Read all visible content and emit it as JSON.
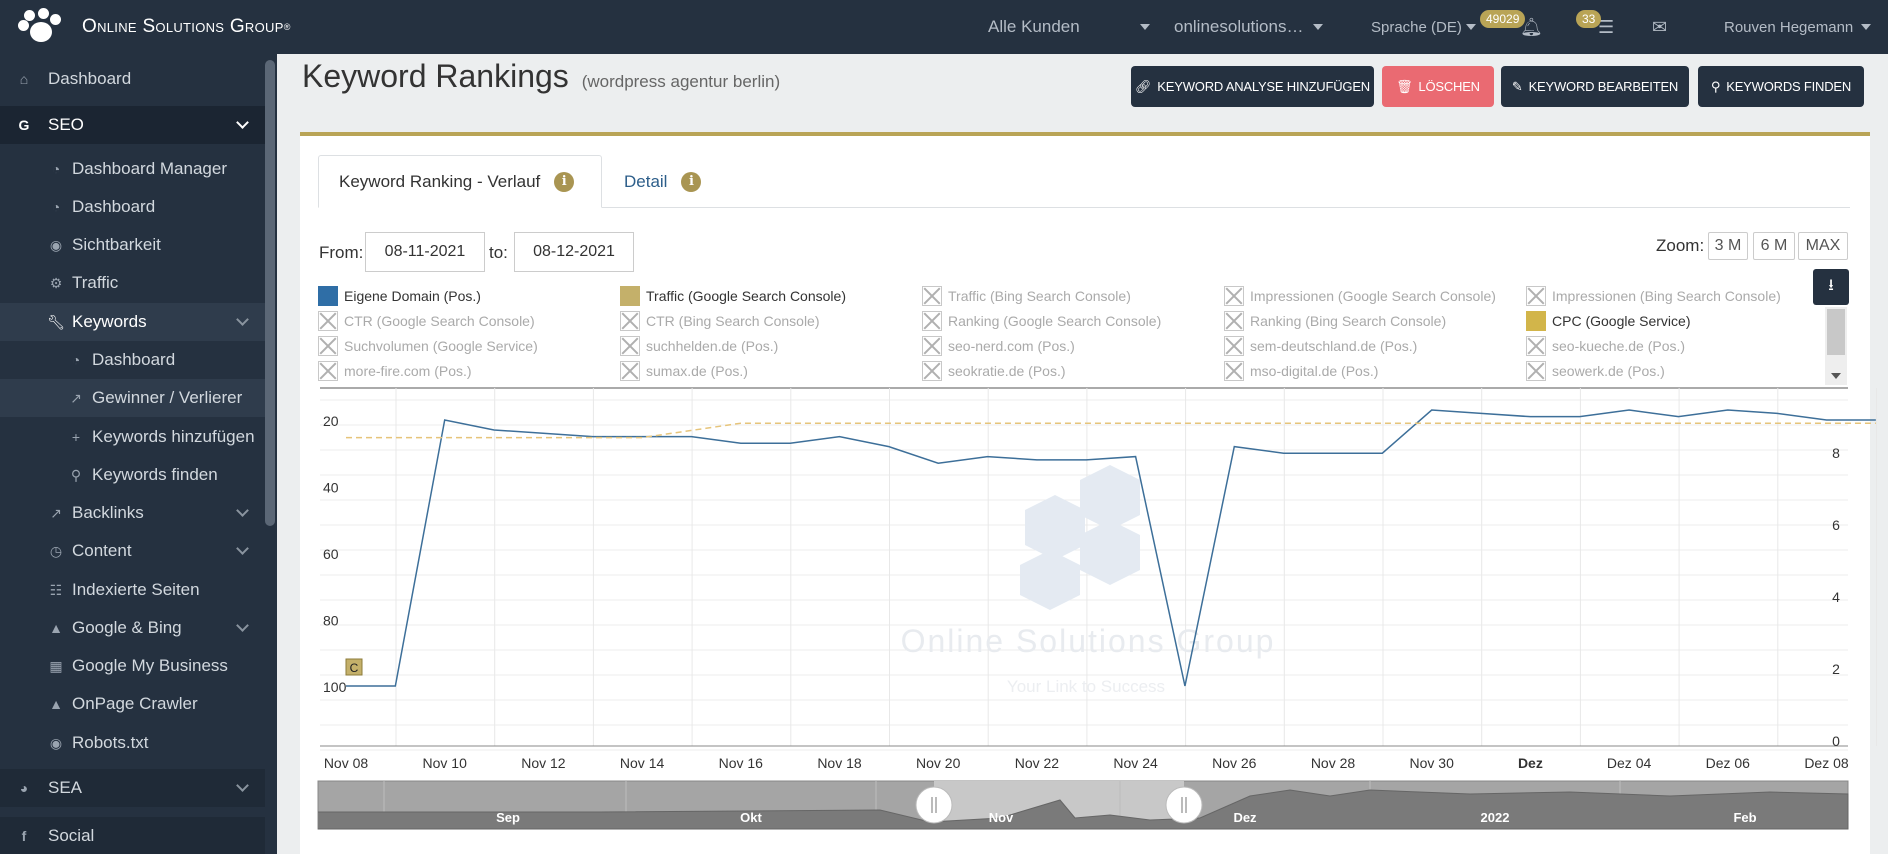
{
  "topbar": {
    "brand": "Online Solutions Group",
    "customers": "Alle Kunden",
    "domain": "onlinesolutions…",
    "language": "Sprache (DE)",
    "notifications_count": "49029",
    "tasks_count": "33",
    "user": "Rouven Hegemann"
  },
  "sidebar": {
    "dashboard": "Dashboard",
    "seo": "SEO",
    "dashboard_manager": "Dashboard Manager",
    "seo_dashboard": "Dashboard",
    "sichtbarkeit": "Sichtbarkeit",
    "traffic": "Traffic",
    "keywords": "Keywords",
    "kw_dashboard": "Dashboard",
    "gewinner": "Gewinner / Verlierer",
    "kw_add": "Keywords hinzufügen",
    "kw_find": "Keywords finden",
    "backlinks": "Backlinks",
    "content": "Content",
    "indexierte": "Indexierte Seiten",
    "google_bing": "Google & Bing",
    "gmb": "Google My Business",
    "crawler": "OnPage Crawler",
    "robots": "Robots.txt",
    "sea": "SEA",
    "social": "Social"
  },
  "page": {
    "title": "Keyword Rankings",
    "subtitle": "(wordpress agentur berlin)",
    "btn_add": "KEYWORD ANALYSE HINZUFÜGEN",
    "btn_delete": "LÖSCHEN",
    "btn_edit": "KEYWORD BEARBEITEN",
    "btn_find": "KEYWORDS FINDEN"
  },
  "colors": {
    "accent": "#b9a456",
    "navy": "#253140",
    "danger": "#ea6a72",
    "series_blue": "#2f6ea6",
    "cpc_gold": "#d2b54a"
  },
  "tabs": {
    "history": "Keyword Ranking - Verlauf",
    "detail": "Detail"
  },
  "filters": {
    "from_label": "From:",
    "from": "08-11-2021",
    "to_label": "to:",
    "to": "08-12-2021",
    "zoom_label": "Zoom:",
    "zoom_3m": "3 M",
    "zoom_6m": "6 M",
    "zoom_max": "MAX"
  },
  "legend": [
    {
      "label": "Eigene Domain (Pos.)",
      "active": true,
      "color": "#2f6ea6"
    },
    {
      "label": "Traffic (Google Search Console)",
      "active": true,
      "color": "#c4b06a"
    },
    {
      "label": "Traffic (Bing Search Console)",
      "active": false
    },
    {
      "label": "Impressionen (Google Search Console)",
      "active": false
    },
    {
      "label": "Impressionen (Bing Search Console)",
      "active": false
    },
    {
      "label": "CTR (Google Search Console)",
      "active": false
    },
    {
      "label": "CTR (Bing Search Console)",
      "active": false
    },
    {
      "label": "Ranking (Google Search Console)",
      "active": false
    },
    {
      "label": "Ranking (Bing Search Console)",
      "active": false
    },
    {
      "label": "CPC (Google Service)",
      "active": true,
      "color": "#d2b54a"
    },
    {
      "label": "Suchvolumen (Google Service)",
      "active": false
    },
    {
      "label": "suchhelden.de (Pos.)",
      "active": false
    },
    {
      "label": "seo-nerd.com (Pos.)",
      "active": false
    },
    {
      "label": "sem-deutschland.de (Pos.)",
      "active": false
    },
    {
      "label": "seo-kueche.de (Pos.)",
      "active": false
    },
    {
      "label": "more-fire.com (Pos.)",
      "active": false
    },
    {
      "label": "sumax.de (Pos.)",
      "active": false
    },
    {
      "label": "seokratie.de (Pos.)",
      "active": false
    },
    {
      "label": "mso-digital.de (Pos.)",
      "active": false
    },
    {
      "label": "seowerk.de (Pos.)",
      "active": false
    }
  ],
  "chart_data": {
    "type": "line",
    "x_ticks": [
      "Nov 08",
      "Nov 10",
      "Nov 12",
      "Nov 14",
      "Nov 16",
      "Nov 18",
      "Nov 20",
      "Nov 22",
      "Nov 24",
      "Nov 26",
      "Nov 28",
      "Nov 30",
      "Dez",
      "Dez 04",
      "Dez 06",
      "Dez 08"
    ],
    "y_left_ticks": [
      "20",
      "40",
      "60",
      "80",
      "100"
    ],
    "y_left_range": [
      0,
      100
    ],
    "y_left_reversed": true,
    "y_right_ticks": [
      "8",
      "6",
      "4",
      "2",
      "0"
    ],
    "y_right_range": [
      0,
      10
    ],
    "series": [
      {
        "name": "Eigene Domain (Pos.)",
        "axis": "left",
        "x": [
          0,
          0.5,
          1,
          1.5,
          2.5,
          3.5,
          4,
          4.5,
          5,
          5.5,
          6,
          6.5,
          7,
          7.5,
          8,
          8.5,
          9,
          9.5,
          10,
          10.5,
          11,
          11.5,
          12,
          12.5,
          13,
          13.5,
          14,
          14.5,
          15,
          15.5
        ],
        "values": [
          100,
          100,
          20,
          23,
          25,
          25,
          27,
          27,
          25,
          28,
          33,
          31,
          32,
          32,
          31,
          100,
          28,
          30,
          30,
          30,
          17,
          18,
          19,
          19,
          17,
          19,
          17,
          18,
          20,
          20
        ]
      },
      {
        "name": "Traffic (Google Search Console)",
        "axis": "right",
        "dashed": true,
        "x": [
          0,
          3,
          4,
          7,
          14,
          15.5
        ],
        "values": [
          8.4,
          8.4,
          8.8,
          8.8,
          8.8,
          8.8
        ]
      }
    ],
    "annotation": "C",
    "watermark": "Online Solutions Group",
    "watermark_tagline": "Your Link to Success",
    "navigator_labels": [
      "Sep",
      "Okt",
      "Nov",
      "Dez",
      "2022",
      "Feb"
    ]
  }
}
